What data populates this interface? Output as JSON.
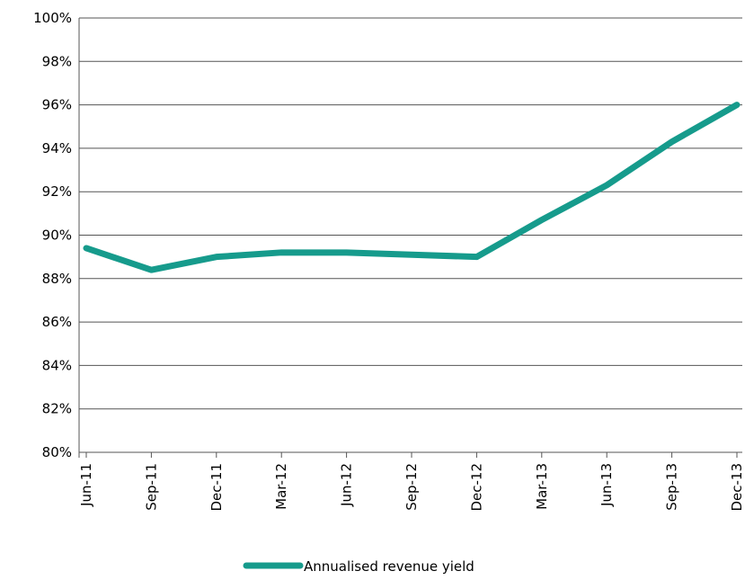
{
  "chart_data": {
    "type": "line",
    "categories": [
      "Jun-11",
      "Sep-11",
      "Dec-11",
      "Mar-12",
      "Jun-12",
      "Sep-12",
      "Dec-12",
      "Mar-13",
      "Jun-13",
      "Sep-13",
      "Dec-13"
    ],
    "series": [
      {
        "name": "Annualised revenue yield",
        "color": "#169b8c",
        "values": [
          89.4,
          88.4,
          89.0,
          89.2,
          89.2,
          89.1,
          89.0,
          90.7,
          92.3,
          94.3,
          96.0
        ]
      }
    ],
    "ylim": [
      80,
      100
    ],
    "yticks": [
      {
        "value": 80,
        "label": "80%"
      },
      {
        "value": 82,
        "label": "82%"
      },
      {
        "value": 84,
        "label": "84%"
      },
      {
        "value": 86,
        "label": "86%"
      },
      {
        "value": 88,
        "label": "88%"
      },
      {
        "value": 90,
        "label": "90%"
      },
      {
        "value": 92,
        "label": "92%"
      },
      {
        "value": 94,
        "label": "94%"
      },
      {
        "value": 96,
        "label": "96%"
      },
      {
        "value": 98,
        "label": "98%"
      },
      {
        "value": 100,
        "label": "100%"
      }
    ],
    "grid": true,
    "legend": "bottom"
  }
}
